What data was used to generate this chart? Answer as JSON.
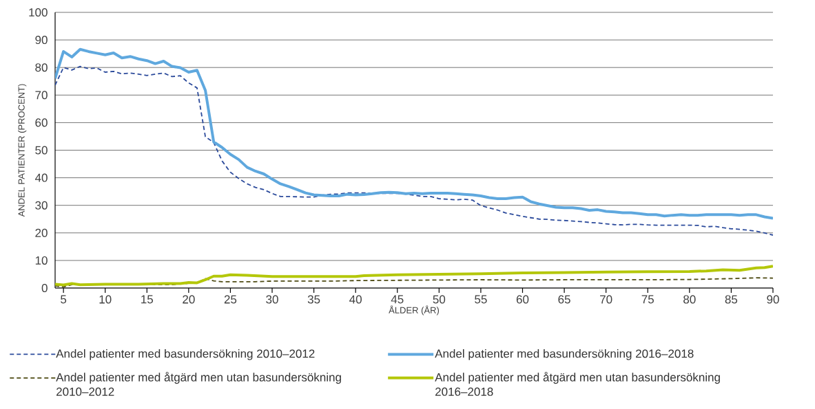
{
  "chart_data": {
    "type": "line",
    "xlabel": "ÅLDER (ÅR)",
    "ylabel": "ANDEL PATIENTER (PROCENT)",
    "x": [
      4,
      5,
      6,
      7,
      8,
      9,
      10,
      11,
      12,
      13,
      14,
      15,
      16,
      17,
      18,
      19,
      20,
      21,
      22,
      23,
      24,
      25,
      26,
      27,
      28,
      29,
      30,
      31,
      32,
      33,
      34,
      35,
      36,
      37,
      38,
      39,
      40,
      41,
      42,
      43,
      44,
      45,
      46,
      47,
      48,
      49,
      50,
      51,
      52,
      53,
      54,
      55,
      56,
      57,
      58,
      59,
      60,
      61,
      62,
      63,
      64,
      65,
      66,
      67,
      68,
      69,
      70,
      71,
      72,
      73,
      74,
      75,
      76,
      77,
      78,
      79,
      80,
      81,
      82,
      83,
      84,
      85,
      86,
      87,
      88,
      89,
      90
    ],
    "series": [
      {
        "name": "Andel patienter med basundersökning 2010–2012",
        "color": "#2b4a9b",
        "line_style": "dashed",
        "values": [
          73.6,
          80.0,
          79.1,
          80.4,
          79.6,
          79.8,
          78.3,
          78.6,
          77.7,
          78.0,
          77.6,
          77.1,
          77.6,
          78.0,
          76.7,
          77.0,
          74.4,
          72.6,
          54.9,
          52.8,
          46.1,
          42.0,
          39.7,
          37.8,
          36.5,
          35.7,
          34.3,
          33.2,
          33.2,
          33.1,
          33.0,
          33.0,
          33.7,
          34.0,
          34.1,
          34.5,
          34.5,
          34.5,
          34.4,
          34.3,
          34.3,
          34.3,
          34.1,
          33.7,
          33.2,
          33.2,
          32.4,
          32.2,
          32.0,
          32.2,
          31.9,
          29.9,
          29.1,
          28.3,
          27.2,
          26.6,
          26.0,
          25.5,
          25.0,
          24.9,
          24.6,
          24.5,
          24.3,
          24.1,
          23.8,
          23.6,
          23.3,
          23.0,
          22.9,
          23.1,
          23.1,
          22.9,
          22.8,
          22.8,
          22.8,
          22.8,
          22.8,
          22.7,
          22.2,
          22.4,
          21.9,
          21.5,
          21.3,
          21.0,
          20.6,
          20.0,
          19.2
        ]
      },
      {
        "name": "Andel patienter med basundersökning 2016–2018",
        "color": "#5fa8de",
        "line_style": "solid",
        "values": [
          76,
          85.8,
          83.8,
          86.6,
          85.8,
          85.2,
          84.6,
          85.3,
          83.5,
          84.0,
          83.1,
          82.5,
          81.4,
          82.3,
          80.4,
          79.9,
          78.3,
          79.0,
          71.7,
          53.0,
          51.0,
          48.5,
          46.6,
          43.8,
          42.4,
          41.4,
          39.5,
          37.8,
          36.8,
          35.7,
          34.5,
          33.8,
          33.6,
          33.4,
          33.4,
          34.0,
          33.8,
          33.9,
          34.2,
          34.6,
          34.7,
          34.6,
          34.2,
          34.4,
          34.2,
          34.4,
          34.4,
          34.4,
          34.2,
          34.0,
          33.8,
          33.4,
          32.8,
          32.4,
          32.4,
          32.8,
          33.0,
          31.3,
          30.5,
          29.9,
          29.3,
          29.1,
          29.1,
          28.8,
          28.2,
          28.4,
          27.8,
          27.6,
          27.3,
          27.3,
          27.0,
          26.6,
          26.6,
          26.1,
          26.4,
          26.6,
          26.4,
          26.4,
          26.6,
          26.6,
          26.6,
          26.6,
          26.4,
          26.6,
          26.6,
          25.8,
          25.3
        ]
      },
      {
        "name": "Andel patienter med åtgärd men utan basundersökning 2010–2012",
        "color": "#4d4a12",
        "line_style": "dashed",
        "x": [
          4,
          5,
          6,
          10,
          15,
          18,
          19,
          20,
          21,
          22,
          23,
          24,
          28,
          30,
          37,
          40,
          45,
          50,
          55,
          60,
          65,
          70,
          75,
          80,
          85,
          88,
          90
        ],
        "values": [
          0.8,
          0.4,
          1.2,
          1.2,
          1.2,
          1.2,
          1.5,
          1.7,
          1.9,
          3.4,
          2.6,
          2.3,
          2.3,
          2.5,
          2.5,
          2.7,
          2.8,
          2.9,
          3.0,
          2.9,
          3.0,
          3.0,
          3.0,
          3.1,
          3.4,
          3.7,
          3.6
        ]
      },
      {
        "name": "Andel patienter med åtgärd men utan basundersökning 2016–2018",
        "color": "#b4c70a",
        "line_style": "solid",
        "x": [
          4,
          5,
          6,
          7,
          10,
          14,
          17,
          19,
          20,
          21,
          22,
          23,
          24,
          25,
          27,
          30,
          35,
          40,
          41,
          45,
          50,
          55,
          60,
          65,
          70,
          75,
          80,
          82,
          84,
          86,
          88,
          89,
          90
        ],
        "values": [
          1.4,
          1.1,
          1.6,
          1.2,
          1.4,
          1.4,
          1.6,
          1.6,
          2.0,
          1.9,
          3.0,
          4.3,
          4.3,
          4.8,
          4.6,
          4.2,
          4.2,
          4.2,
          4.5,
          4.8,
          5.0,
          5.2,
          5.5,
          5.6,
          5.8,
          5.9,
          6.0,
          6.2,
          6.6,
          6.4,
          7.3,
          7.4,
          7.9
        ]
      }
    ],
    "xlim": [
      4,
      90
    ],
    "ylim": [
      0,
      100
    ],
    "xticks": [
      5,
      10,
      15,
      20,
      25,
      30,
      35,
      40,
      45,
      50,
      55,
      60,
      65,
      70,
      75,
      80,
      85,
      90
    ],
    "yticks": [
      0,
      10,
      20,
      30,
      40,
      50,
      60,
      70,
      80,
      90,
      100
    ],
    "grid": "y",
    "legend": "bottom"
  }
}
